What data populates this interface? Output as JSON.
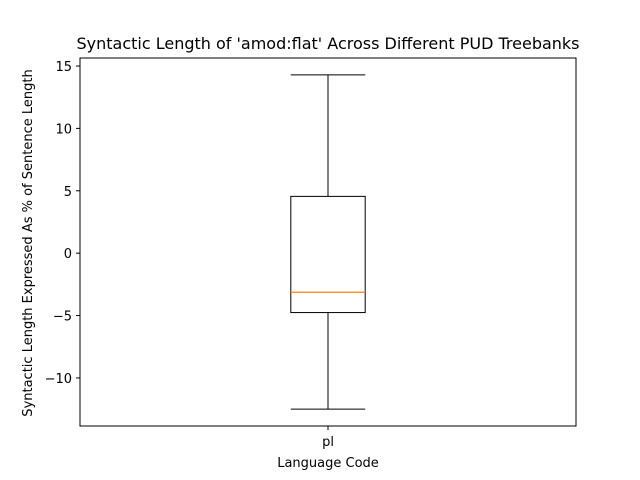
{
  "chart_data": {
    "type": "box",
    "title": "Syntactic Length of 'amod:flat' Across Different PUD Treebanks",
    "xlabel": "Language Code",
    "ylabel": "Syntactic Length Expressed As % of Sentence Length",
    "categories": [
      "pl"
    ],
    "boxes": [
      {
        "category": "pl",
        "whisker_low": -12.5,
        "q1": -4.76,
        "median": -3.13,
        "q3": 4.55,
        "whisker_high": 14.29
      }
    ],
    "ylim": [
      -13.85,
      15.64
    ],
    "yticks": [
      -10,
      -5,
      0,
      5,
      10,
      15
    ],
    "grid": false,
    "colors": {
      "box": "#000000",
      "median": "#ff7f0e",
      "whisker": "#000000"
    }
  }
}
